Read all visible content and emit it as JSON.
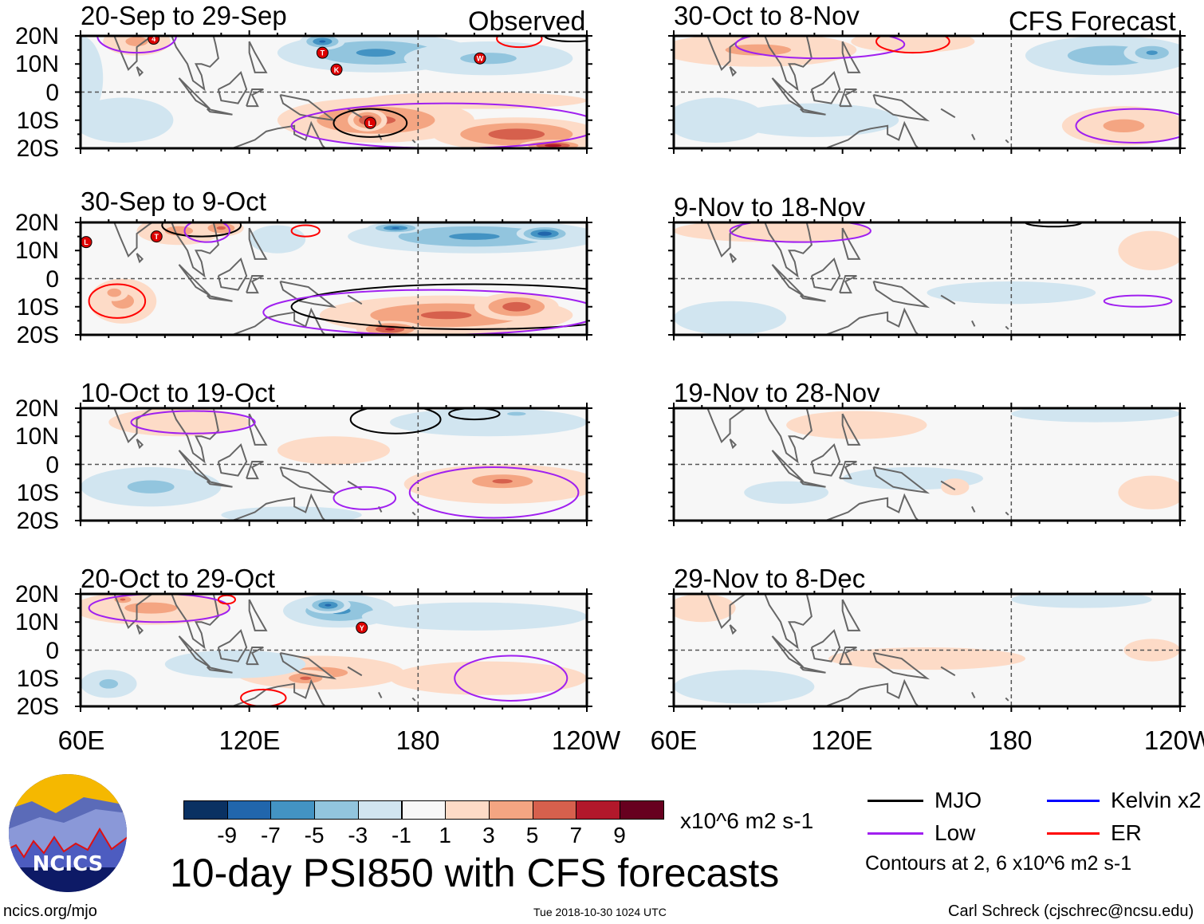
{
  "title": "10-day PSI850 with CFS forecasts",
  "headers": {
    "observed": "Observed",
    "forecast": "CFS Forecast"
  },
  "lat_labels": [
    "20N",
    "10N",
    "0",
    "10S",
    "20S"
  ],
  "lon_labels": [
    "60E",
    "120E",
    "180",
    "120W"
  ],
  "colorbar": {
    "colors": [
      "#0a3162",
      "#2166ac",
      "#4393c3",
      "#92c5de",
      "#d1e5f0",
      "#f7f7f7",
      "#fddbc7",
      "#f4a582",
      "#d6604d",
      "#b2182b",
      "#67001f"
    ],
    "ticks": [
      "-9",
      "-7",
      "-5",
      "-3",
      "-1",
      "1",
      "3",
      "5",
      "7",
      "9"
    ],
    "units": "x10^6 m2 s-1"
  },
  "contour_legend": {
    "items": [
      {
        "label": "MJO",
        "color": "#000000"
      },
      {
        "label": "Kelvin x2",
        "color": "#0000ff"
      },
      {
        "label": "Low",
        "color": "#a020f0"
      },
      {
        "label": "ER",
        "color": "#ff0000"
      }
    ],
    "note": "Contours at 2, 6 x10^6 m2 s-1"
  },
  "logo": {
    "text": "NCICS"
  },
  "footer": {
    "url": "ncics.org/mjo",
    "timestamp": "Tue 2018-10-30 1024 UTC",
    "author": "Carl Schreck (cjschrec@ncsu.edu)"
  },
  "chart_data": {
    "type": "heatmap",
    "lon_range": [
      60,
      240
    ],
    "lat_range": [
      -20,
      20
    ],
    "variable": "PSI850 anomaly",
    "panels": [
      {
        "title": "20-Sep to 29-Sep",
        "kind": "observed",
        "blobs": [
          [
            75,
            -10,
            18,
            8,
            -2
          ],
          [
            60,
            5,
            8,
            15,
            -1.5
          ],
          [
            80,
            18,
            12,
            5,
            3
          ],
          [
            165,
            14,
            35,
            7,
            -5
          ],
          [
            146,
            18,
            8,
            3,
            -7
          ],
          [
            205,
            12,
            30,
            6,
            -3
          ],
          [
            165,
            -10,
            35,
            8,
            5
          ],
          [
            162,
            -10,
            7,
            4,
            7
          ],
          [
            215,
            -15,
            30,
            6,
            6
          ],
          [
            228,
            -19,
            12,
            2,
            8
          ],
          [
            200,
            -3,
            40,
            3,
            2
          ]
        ],
        "contours": [
          [
            "Low",
            80,
            20,
            14,
            6
          ],
          [
            "Low",
            190,
            -12,
            55,
            8
          ],
          [
            "MJO",
            163,
            -11,
            13,
            5
          ],
          [
            "ER",
            216,
            19,
            8,
            3
          ],
          [
            "MJO",
            235,
            20,
            10,
            2
          ]
        ],
        "storms": [
          [
            "4",
            86,
            19
          ],
          [
            "T",
            146,
            14
          ],
          [
            "K",
            151,
            8
          ],
          [
            "W",
            202,
            12
          ],
          [
            "L",
            163,
            -11
          ]
        ]
      },
      {
        "title": "30-Sep to 9-Oct",
        "kind": "observed",
        "blobs": [
          [
            75,
            -8,
            12,
            8,
            3
          ],
          [
            72,
            -5,
            5,
            3,
            4
          ],
          [
            95,
            17,
            15,
            5,
            3
          ],
          [
            110,
            18,
            8,
            3,
            5
          ],
          [
            200,
            15,
            45,
            6,
            -5
          ],
          [
            172,
            18,
            10,
            2,
            -7
          ],
          [
            225,
            16,
            10,
            3,
            -8
          ],
          [
            190,
            -13,
            45,
            7,
            5
          ],
          [
            170,
            -18,
            12,
            3,
            7
          ],
          [
            215,
            -10,
            15,
            5,
            6
          ],
          [
            130,
            14,
            10,
            5,
            -2
          ]
        ],
        "contours": [
          [
            "ER",
            73,
            -8,
            10,
            6
          ],
          [
            "ER",
            140,
            17,
            5,
            2
          ],
          [
            "MJO",
            103,
            19,
            14,
            4
          ],
          [
            "MJO",
            200,
            -10,
            65,
            8
          ],
          [
            "Low",
            185,
            -12,
            60,
            8
          ],
          [
            "Low",
            105,
            17,
            8,
            4
          ]
        ],
        "storms": [
          [
            "L",
            62,
            13
          ],
          [
            "T",
            87,
            15
          ]
        ]
      },
      {
        "title": "10-Oct to 19-Oct",
        "kind": "observed",
        "blobs": [
          [
            95,
            15,
            25,
            5,
            2
          ],
          [
            85,
            -8,
            25,
            7,
            -3
          ],
          [
            210,
            -7,
            35,
            7,
            3
          ],
          [
            210,
            -6,
            18,
            4,
            5
          ],
          [
            205,
            15,
            35,
            5,
            -2
          ],
          [
            215,
            18,
            10,
            2,
            -3
          ],
          [
            150,
            5,
            20,
            5,
            1.5
          ],
          [
            135,
            -18,
            25,
            3,
            -1.5
          ]
        ],
        "contours": [
          [
            "Low",
            100,
            15,
            22,
            4
          ],
          [
            "Low",
            161,
            -12,
            11,
            4
          ],
          [
            "Low",
            207,
            -10,
            30,
            9
          ],
          [
            "MJO",
            172,
            16,
            16,
            5
          ],
          [
            "MJO",
            200,
            18,
            9,
            2
          ]
        ],
        "storms": []
      },
      {
        "title": "20-Oct to 29-Oct",
        "kind": "observed",
        "blobs": [
          [
            85,
            15,
            28,
            6,
            3
          ],
          [
            75,
            18,
            5,
            2,
            5
          ],
          [
            152,
            14,
            20,
            6,
            -5
          ],
          [
            148,
            16,
            8,
            3,
            -7
          ],
          [
            200,
            12,
            40,
            5,
            -2
          ],
          [
            145,
            -8,
            30,
            6,
            3
          ],
          [
            140,
            -10,
            10,
            3,
            5
          ],
          [
            205,
            -10,
            35,
            6,
            2
          ],
          [
            70,
            -12,
            10,
            5,
            -3
          ],
          [
            115,
            -5,
            25,
            5,
            -2
          ]
        ],
        "contours": [
          [
            "Low",
            88,
            15,
            25,
            5
          ],
          [
            "Low",
            213,
            -10,
            20,
            8
          ],
          [
            "ER",
            125,
            -17,
            8,
            3
          ],
          [
            "ER",
            112,
            18,
            3,
            1.5
          ]
        ],
        "storms": [
          [
            "Y",
            160,
            8
          ]
        ]
      },
      {
        "title": "30-Oct to 8-Nov",
        "kind": "forecast",
        "blobs": [
          [
            90,
            15,
            35,
            6,
            3
          ],
          [
            145,
            18,
            22,
            4,
            2
          ],
          [
            215,
            13,
            30,
            7,
            -4
          ],
          [
            230,
            14,
            10,
            4,
            -5
          ],
          [
            220,
            -12,
            22,
            7,
            3
          ],
          [
            75,
            -10,
            18,
            8,
            -2
          ],
          [
            110,
            -10,
            30,
            6,
            -1.5
          ]
        ],
        "contours": [
          [
            "Low",
            112,
            17,
            30,
            5
          ],
          [
            "Low",
            224,
            -12,
            21,
            6
          ],
          [
            "ER",
            145,
            18,
            13,
            4
          ]
        ],
        "storms": []
      },
      {
        "title": "9-Nov to 18-Nov",
        "kind": "forecast",
        "blobs": [
          [
            95,
            17,
            35,
            4,
            2
          ],
          [
            230,
            10,
            12,
            7,
            2
          ],
          [
            80,
            -14,
            20,
            6,
            -1.5
          ],
          [
            180,
            -5,
            30,
            4,
            -1.2
          ]
        ],
        "contours": [
          [
            "Low",
            105,
            17,
            25,
            4
          ],
          [
            "Low",
            225,
            -8,
            12,
            2
          ],
          [
            "MJO",
            195,
            20,
            10,
            1.5
          ]
        ],
        "storms": []
      },
      {
        "title": "19-Nov to 28-Nov",
        "kind": "forecast",
        "blobs": [
          [
            125,
            14,
            25,
            5,
            2
          ],
          [
            145,
            -5,
            25,
            4,
            -1.5
          ],
          [
            230,
            -10,
            12,
            6,
            2
          ],
          [
            210,
            18,
            30,
            3,
            -1.5
          ],
          [
            160,
            -8,
            5,
            3,
            2
          ],
          [
            100,
            -10,
            15,
            4,
            -1.5
          ]
        ],
        "contours": [],
        "storms": []
      },
      {
        "title": "29-Nov to 8-Dec",
        "kind": "forecast",
        "blobs": [
          [
            70,
            15,
            12,
            5,
            2
          ],
          [
            150,
            -3,
            35,
            4,
            2
          ],
          [
            85,
            -13,
            25,
            6,
            -2
          ],
          [
            205,
            18,
            25,
            3,
            -1.5
          ],
          [
            230,
            0,
            10,
            4,
            1.5
          ]
        ],
        "contours": [],
        "storms": []
      }
    ]
  }
}
